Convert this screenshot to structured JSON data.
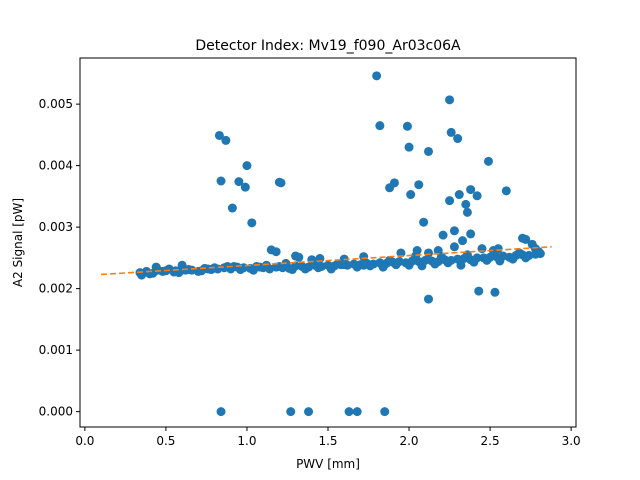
{
  "chart_data": {
    "type": "scatter",
    "title": "Detector Index: Mv19_f090_Ar03c06A",
    "xlabel": "PWV [mm]",
    "ylabel": "A2 Signal [pW]",
    "xlim": [
      -0.03,
      3.03
    ],
    "ylim": [
      -0.00025,
      0.00575
    ],
    "xticks": [
      0.0,
      0.5,
      1.0,
      1.5,
      2.0,
      2.5,
      3.0
    ],
    "xtick_labels": [
      "0.0",
      "0.5",
      "1.0",
      "1.5",
      "2.0",
      "2.5",
      "3.0"
    ],
    "yticks": [
      0.0,
      0.001,
      0.002,
      0.003,
      0.004,
      0.005
    ],
    "ytick_labels": [
      "0.000",
      "0.001",
      "0.002",
      "0.003",
      "0.004",
      "0.005"
    ],
    "colors": {
      "points": "#1f77b4",
      "fit": "#ff7f0e"
    },
    "series": [
      {
        "name": "measurements",
        "kind": "points",
        "x": [
          0.35,
          0.38,
          0.42,
          0.45,
          0.5,
          0.52,
          0.55,
          0.58,
          0.6,
          0.62,
          0.66,
          0.7,
          0.74,
          0.78,
          0.82,
          0.86,
          0.9,
          0.94,
          0.98,
          1.02,
          1.06,
          1.1,
          1.14,
          1.18,
          1.22,
          1.26,
          1.3,
          1.34,
          1.38,
          1.42,
          1.46,
          1.5,
          1.54,
          1.58,
          1.62,
          1.66,
          1.7,
          1.74,
          1.78,
          1.82,
          1.86,
          1.9,
          1.94,
          1.98,
          2.02,
          2.06,
          2.1,
          2.14,
          2.18,
          2.22,
          2.26,
          2.3,
          2.34,
          2.38,
          2.42,
          2.46,
          2.5,
          2.54,
          2.58,
          2.62,
          2.66,
          2.7,
          2.74,
          2.78,
          2.81,
          0.34,
          0.4,
          0.48,
          0.56,
          0.64,
          0.72,
          0.8,
          0.88,
          0.96,
          1.04,
          1.12,
          1.2,
          1.28,
          1.36,
          1.44,
          1.52,
          1.6,
          1.68,
          1.76,
          1.84,
          1.92,
          2.0,
          2.08,
          2.16,
          2.24,
          2.32,
          2.4,
          2.48,
          2.56,
          2.64,
          2.72,
          2.8,
          0.44,
          0.6,
          0.76,
          0.92,
          1.08,
          1.24,
          1.4,
          1.56,
          1.72,
          1.88,
          2.04,
          2.2,
          2.36,
          2.52,
          2.68,
          1.15,
          1.18,
          1.3,
          1.32,
          1.45,
          1.6,
          1.72,
          1.95,
          2.05,
          2.12,
          2.18,
          2.28,
          2.45,
          2.55,
          2.7,
          2.72,
          2.76,
          2.78,
          0.83,
          0.84,
          0.87,
          0.91,
          0.95,
          0.99,
          1.0,
          1.03,
          1.2,
          1.21,
          1.8,
          1.82,
          1.88,
          1.91,
          1.99,
          2.0,
          2.01,
          2.06,
          2.09,
          2.12,
          2.25,
          2.26,
          2.3,
          2.31,
          2.35,
          2.36,
          2.38,
          2.38,
          2.42,
          2.49,
          2.6,
          2.25,
          2.21,
          2.28,
          2.33,
          2.43,
          2.53,
          2.12,
          0.84,
          1.27,
          1.38,
          1.63,
          1.68,
          1.85
        ],
        "y": [
          0.00222,
          0.00228,
          0.00225,
          0.0023,
          0.00229,
          0.00232,
          0.00227,
          0.00226,
          0.00233,
          0.0023,
          0.0023,
          0.00228,
          0.00233,
          0.00231,
          0.00232,
          0.00234,
          0.00232,
          0.00235,
          0.00234,
          0.00233,
          0.00236,
          0.00234,
          0.00232,
          0.00235,
          0.00234,
          0.00233,
          0.00237,
          0.00236,
          0.00235,
          0.00238,
          0.00236,
          0.00238,
          0.00237,
          0.00239,
          0.00238,
          0.0024,
          0.00239,
          0.00241,
          0.0024,
          0.00242,
          0.00241,
          0.00243,
          0.00244,
          0.00242,
          0.00245,
          0.00244,
          0.00246,
          0.00245,
          0.00244,
          0.00247,
          0.00246,
          0.00248,
          0.00249,
          0.00247,
          0.0025,
          0.0025,
          0.00251,
          0.00252,
          0.00253,
          0.00251,
          0.00254,
          0.00255,
          0.00254,
          0.00256,
          0.00257,
          0.00226,
          0.00224,
          0.00228,
          0.00229,
          0.00231,
          0.00229,
          0.00234,
          0.00236,
          0.00231,
          0.0023,
          0.00238,
          0.00236,
          0.00231,
          0.00232,
          0.00234,
          0.00232,
          0.00239,
          0.00235,
          0.00237,
          0.00235,
          0.00239,
          0.00238,
          0.00237,
          0.0024,
          0.00242,
          0.00238,
          0.00243,
          0.00246,
          0.00245,
          0.00248,
          0.0025,
          0.0026,
          0.00235,
          0.00238,
          0.00232,
          0.00236,
          0.00235,
          0.00241,
          0.00247,
          0.0024,
          0.00238,
          0.00246,
          0.00253,
          0.00252,
          0.00255,
          0.00262,
          0.00258,
          0.00263,
          0.0026,
          0.00253,
          0.00251,
          0.00249,
          0.00248,
          0.00252,
          0.00258,
          0.00262,
          0.00258,
          0.00262,
          0.00268,
          0.00265,
          0.00265,
          0.00282,
          0.0028,
          0.00272,
          0.00265,
          0.00449,
          0.00375,
          0.00441,
          0.00331,
          0.00374,
          0.00365,
          0.004,
          0.00307,
          0.00373,
          0.00372,
          0.00546,
          0.00465,
          0.00364,
          0.00372,
          0.00464,
          0.0043,
          0.00353,
          0.00369,
          0.00308,
          0.00423,
          0.00507,
          0.00454,
          0.00444,
          0.00353,
          0.00337,
          0.00324,
          0.00361,
          0.00289,
          0.00351,
          0.00407,
          0.00359,
          0.00343,
          0.00287,
          0.00294,
          0.00278,
          0.00196,
          0.00194,
          0.00183,
          0.0,
          0.0,
          0.0,
          0.0,
          0.0,
          0.0
        ]
      },
      {
        "name": "linear fit",
        "kind": "dashed-line",
        "x": [
          0.1,
          2.88
        ],
        "y": [
          0.00223,
          0.00268
        ]
      }
    ]
  }
}
